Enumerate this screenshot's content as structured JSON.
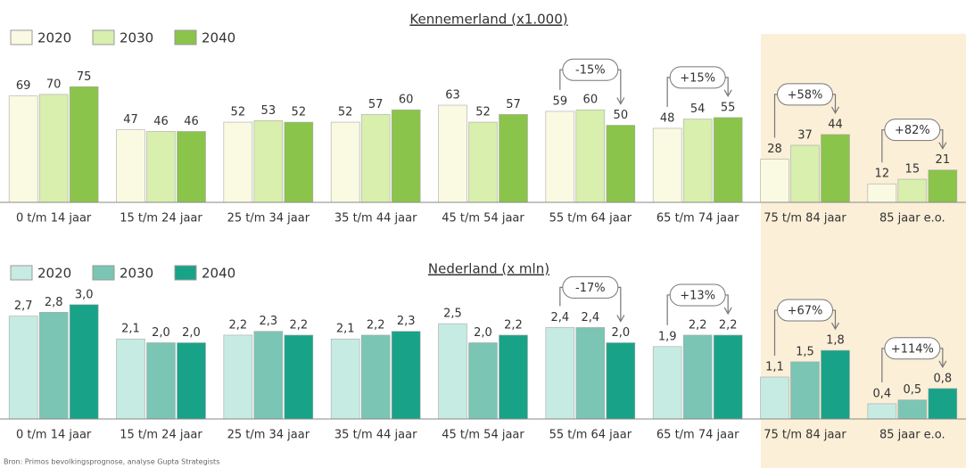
{
  "chart_data": [
    {
      "type": "bar",
      "title": "Kennemerland (x1.000)",
      "categories": [
        "0 t/m 14 jaar",
        "15 t/m 24 jaar",
        "25 t/m 34 jaar",
        "35 t/m 44 jaar",
        "45 t/m 54 jaar",
        "55 t/m 64 jaar",
        "65 t/m 74 jaar",
        "75 t/m 84 jaar",
        "85 jaar e.o."
      ],
      "series": [
        {
          "name": "2020",
          "color": "#fafae2",
          "values": [
            69,
            47,
            52,
            52,
            63,
            59,
            48,
            28,
            12
          ]
        },
        {
          "name": "2030",
          "color": "#d8efae",
          "values": [
            70,
            46,
            53,
            57,
            52,
            60,
            54,
            37,
            15
          ]
        },
        {
          "name": "2040",
          "color": "#8bc44a",
          "values": [
            75,
            46,
            52,
            60,
            57,
            50,
            55,
            44,
            21
          ]
        }
      ],
      "ylim": [
        0,
        100
      ],
      "annotations": [
        "-15%",
        "+15%",
        "+58%",
        "+82%"
      ]
    },
    {
      "type": "bar",
      "title": "Nederland (x mln)",
      "categories": [
        "0 t/m 14 jaar",
        "15 t/m 24 jaar",
        "25 t/m 34 jaar",
        "35 t/m 44 jaar",
        "45 t/m 54 jaar",
        "55 t/m 64 jaar",
        "65 t/m 74 jaar",
        "75 t/m 84 jaar",
        "85 jaar e.o."
      ],
      "series": [
        {
          "name": "2020",
          "color": "#c6ebe2",
          "values": [
            2.7,
            2.1,
            2.2,
            2.1,
            2.5,
            2.4,
            1.9,
            1.1,
            0.4
          ],
          "value_labels": [
            "2,7",
            "2,1",
            "2,2",
            "2,1",
            "2,5",
            "2,4",
            "1,9",
            "1,1",
            "0,4"
          ]
        },
        {
          "name": "2030",
          "color": "#7ac5b3",
          "values": [
            2.8,
            2.0,
            2.3,
            2.2,
            2.0,
            2.4,
            2.2,
            1.5,
            0.5
          ],
          "value_labels": [
            "2,8",
            "2,0",
            "2,3",
            "2,2",
            "2,0",
            "2,4",
            "2,2",
            "1,5",
            "0,5"
          ]
        },
        {
          "name": "2040",
          "color": "#18a389",
          "values": [
            3.0,
            2.0,
            2.2,
            2.3,
            2.2,
            2.0,
            2.2,
            1.8,
            0.8
          ],
          "value_labels": [
            "3,0",
            "2,0",
            "2,2",
            "2,3",
            "2,2",
            "2,0",
            "2,2",
            "1,8",
            "0,8"
          ]
        }
      ],
      "ylim": [
        0,
        4
      ],
      "annotations": [
        "-17%",
        "+13%",
        "+67%",
        "+114%"
      ]
    }
  ],
  "source": "Bron: Primos bevolkingsprognose, analyse Gupta Strategists"
}
